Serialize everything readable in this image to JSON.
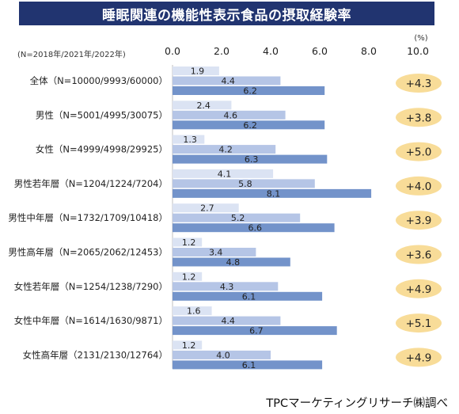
{
  "chart_data": {
    "type": "bar",
    "title": "睡眠関連の機能性表示食品の摂取経験率",
    "n_note": "(N=2018年/2021年/2022年)",
    "unit": "(%)",
    "xlim": [
      0,
      10
    ],
    "ticks": [
      "0.0",
      "2.0",
      "4.0",
      "6.0",
      "8.0",
      "10.0"
    ],
    "categories": [
      "全体（N=10000/9993/60000）",
      "男性（N=5001/4995/30075）",
      "女性（N=4999/4998/29925）",
      "男性若年層（N=1204/1224/7204）",
      "男性中年層（N=1732/1709/10418）",
      "男性高年層（N=2065/2062/12453）",
      "女性若年層（N=1254/1238/7290）",
      "女性中年層（N=1614/1630/9871）",
      "女性高年層（2131/2130/12764）"
    ],
    "series": [
      {
        "values": [
          1.9,
          2.4,
          1.3,
          4.1,
          2.7,
          1.2,
          1.2,
          1.6,
          1.2
        ],
        "color": "#dbe3f3"
      },
      {
        "values": [
          4.4,
          4.6,
          4.2,
          5.8,
          5.2,
          3.4,
          4.3,
          4.4,
          4.0
        ],
        "color": "#b5c5e6"
      },
      {
        "values": [
          6.2,
          6.2,
          6.3,
          8.1,
          6.6,
          4.8,
          6.1,
          6.7,
          6.1
        ],
        "color": "#7393ca"
      }
    ],
    "differences": [
      "+4.3",
      "+3.8",
      "+5.0",
      "+4.0",
      "+3.9",
      "+3.6",
      "+4.9",
      "+5.1",
      "+4.9"
    ],
    "badge_color": "#f8dc98"
  },
  "source": "TPCマーケティングリサーチ㈱調べ"
}
